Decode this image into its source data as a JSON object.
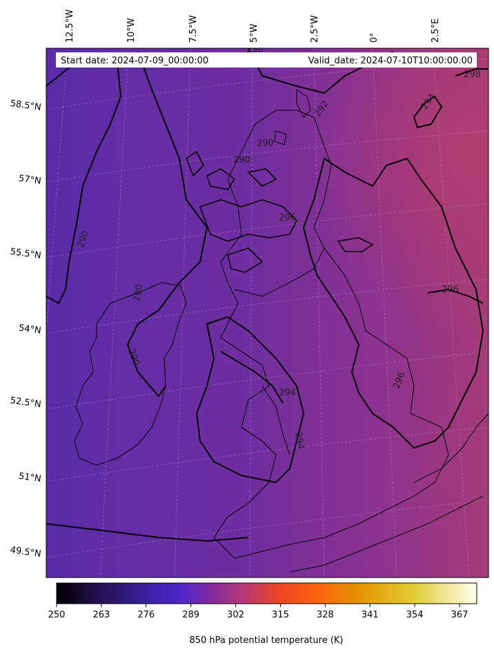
{
  "header": {
    "start_date": "Start date: 2024-07-09_00:00:00",
    "valid_date": "Valid_date: 2024-07-10T10:00:00.00"
  },
  "lon_labels": [
    "12.5°W",
    "10°W",
    "7.5°W",
    "5°W",
    "2.5°W",
    "0°",
    "2.5°E"
  ],
  "lat_labels": [
    "58.5°N",
    "57°N",
    "55.5°N",
    "54°N",
    "52.5°N",
    "51°N",
    "49.5°N"
  ],
  "contour_labels": [
    "290",
    "292",
    "294",
    "290",
    "290",
    "296",
    "290",
    "290",
    "290",
    "294",
    "294",
    "296",
    "296",
    "298"
  ],
  "colorbar": {
    "title": "850 hPa potential temperature (K)",
    "ticks": [
      "250",
      "263",
      "276",
      "289",
      "302",
      "315",
      "328",
      "341",
      "354",
      "367"
    ],
    "min": 250,
    "max": 372,
    "colors": [
      "#000004",
      "#2a1770",
      "#4d25c8",
      "#8c2a9c",
      "#c03a6e",
      "#f0481f",
      "#ff7d00",
      "#e89a00",
      "#d9c21f",
      "#ffffe0"
    ]
  },
  "field_colors": {
    "west": "#5f2da8",
    "center": "#732e9c",
    "east": "#a33a7a"
  }
}
